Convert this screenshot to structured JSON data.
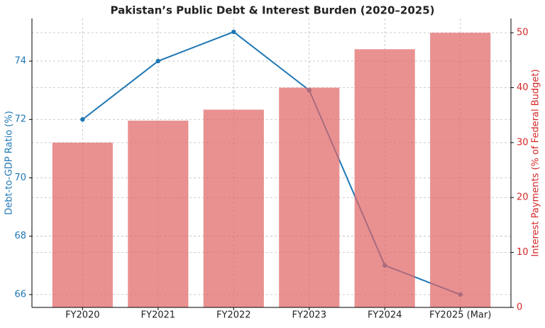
{
  "chart_data": {
    "type": "combo",
    "title": "Pakistan’s Public Debt & Interest Burden (2020–2025)",
    "categories": [
      "FY2020",
      "FY2021",
      "FY2022",
      "FY2023",
      "FY2024",
      "FY2025 (Mar)"
    ],
    "y_label": "Debt-to-GDP Ratio (%)",
    "y2_label": "Interest Payments (% of Federal Budget)",
    "y_label_color": "#1f77b4",
    "y2_label_color": "#d62728",
    "series": [
      {
        "name": "Interest Payments (% of Federal Budget)",
        "type": "bar",
        "axis": "y2",
        "color": "#e06666",
        "values": [
          30,
          34,
          36,
          40,
          47,
          50
        ]
      },
      {
        "name": "Debt-to-GDP Ratio (%)",
        "type": "line",
        "axis": "y",
        "color": "#1f77b4",
        "values": [
          72,
          74,
          75,
          73,
          67,
          66
        ]
      }
    ],
    "ylim": [
      65.56,
      75.46
    ],
    "yticks": [
      66,
      68,
      70,
      72,
      74
    ],
    "y2lim": [
      0,
      52.6
    ],
    "y2ticks": [
      0,
      10,
      20,
      30,
      40,
      50
    ],
    "grid": true
  }
}
